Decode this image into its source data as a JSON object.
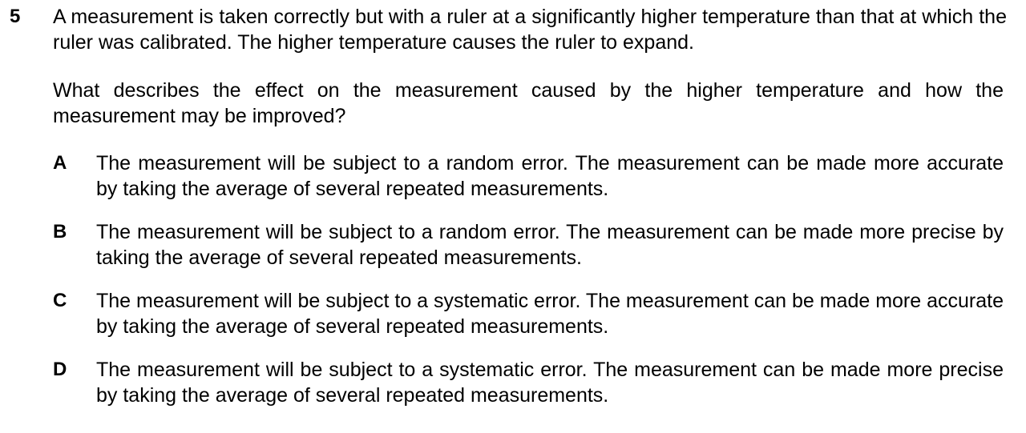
{
  "question": {
    "number": "5",
    "stem": "A measurement is taken correctly but with a ruler at a significantly higher temperature than that at which the ruler was calibrated. The higher temperature causes the ruler to expand.",
    "prompt": "What describes the effect on the measurement caused by the higher temperature and how the measurement may be improved?",
    "options": [
      {
        "letter": "A",
        "text": "The measurement will be subject to a random error. The measurement can be made more accurate by taking the average of several repeated measurements."
      },
      {
        "letter": "B",
        "text": "The measurement will be subject to a random error. The measurement can be made more precise by taking the average of several repeated measurements."
      },
      {
        "letter": "C",
        "text": "The measurement will be subject to a systematic error. The measurement can be made more accurate by taking the average of several repeated measurements."
      },
      {
        "letter": "D",
        "text": "The measurement will be subject to a systematic error. The measurement can be made more precise by taking the average of several repeated measurements."
      }
    ]
  }
}
